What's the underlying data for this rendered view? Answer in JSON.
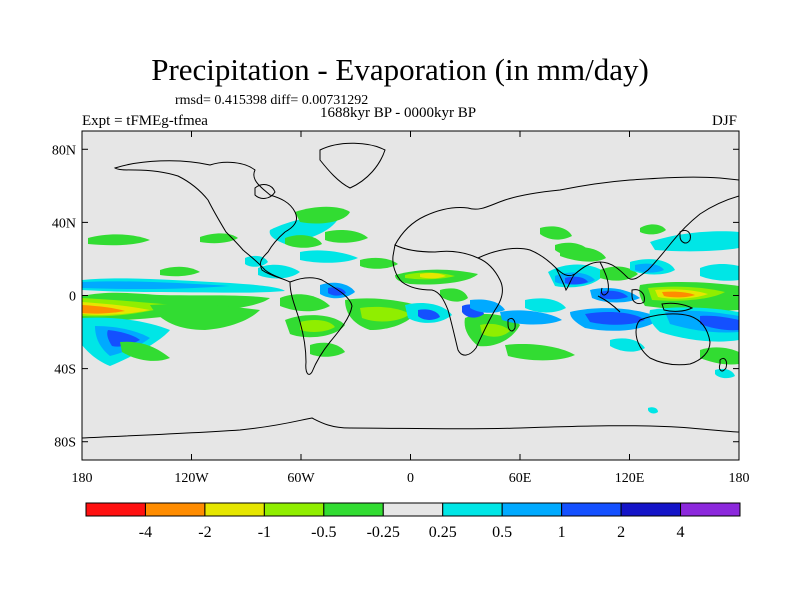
{
  "title": "Precipitation - Evaporation (in mm/day)",
  "stats": "rmsd= 0.415398 diff= 0.00731292",
  "period": "1688kyr BP - 0000kyr BP",
  "experiment": "Expt = tFMEg-tfmea",
  "season": "DJF",
  "map": {
    "lon_range": [
      -180,
      180
    ],
    "lat_range": [
      -90,
      90
    ],
    "lat_ticks": [
      {
        "value": 80,
        "label": "80N"
      },
      {
        "value": 40,
        "label": "40N"
      },
      {
        "value": 0,
        "label": "0"
      },
      {
        "value": -40,
        "label": "40S"
      },
      {
        "value": -80,
        "label": "80S"
      }
    ],
    "lon_ticks": [
      {
        "value": -180,
        "label": "180"
      },
      {
        "value": -120,
        "label": "120W"
      },
      {
        "value": -60,
        "label": "60W"
      },
      {
        "value": 0,
        "label": "0"
      },
      {
        "value": 60,
        "label": "60E"
      },
      {
        "value": 120,
        "label": "120E"
      },
      {
        "value": 180,
        "label": "180"
      }
    ]
  },
  "colorbar": {
    "colors": [
      "#ff1010",
      "#ff8c00",
      "#e6e600",
      "#90ee00",
      "#32dc32",
      "#e6e6e6",
      "#00e6e6",
      "#00aaff",
      "#1450ff",
      "#1414c8",
      "#8c28dc"
    ],
    "labels": [
      "-4",
      "-2",
      "-1",
      "-0.5",
      "-0.25",
      "0.25",
      "0.5",
      "1",
      "2",
      "4"
    ]
  },
  "chart_data": {
    "type": "heatmap",
    "title": "Precipitation - Evaporation (in mm/day)",
    "subtitle": "1688kyr BP - 0000kyr BP",
    "variable": "P-E difference",
    "units": "mm/day",
    "levels": [
      -4,
      -2,
      -1,
      -0.5,
      -0.25,
      0.25,
      0.5,
      1,
      2,
      4
    ],
    "regions": [
      {
        "lon": [
          -180,
          -120
        ],
        "lat": [
          -10,
          3
        ],
        "value": -0.7
      },
      {
        "lon": [
          -180,
          -150
        ],
        "lat": [
          -8,
          -1
        ],
        "value": -2.2
      },
      {
        "lon": [
          -180,
          -110
        ],
        "lat": [
          4,
          12
        ],
        "value": 1.0
      },
      {
        "lon": [
          -180,
          -140
        ],
        "lat": [
          -28,
          -12
        ],
        "value": 1.5
      },
      {
        "lon": [
          -160,
          -120
        ],
        "lat": [
          -30,
          -18
        ],
        "value": 0.6
      },
      {
        "lon": [
          -170,
          -140
        ],
        "lat": [
          -22,
          -16
        ],
        "value": 2.5
      },
      {
        "lon": [
          -115,
          -80
        ],
        "lat": [
          -18,
          -5
        ],
        "value": -0.4
      },
      {
        "lon": [
          -65,
          -45
        ],
        "lat": [
          32,
          44
        ],
        "value": -0.4
      },
      {
        "lon": [
          -70,
          -50
        ],
        "lat": [
          22,
          30
        ],
        "value": 0.6
      },
      {
        "lon": [
          -55,
          -20
        ],
        "lat": [
          -30,
          -10
        ],
        "value": -0.4
      },
      {
        "lon": [
          -30,
          0
        ],
        "lat": [
          -20,
          -10
        ],
        "value": 1.2
      },
      {
        "lon": [
          -20,
          40
        ],
        "lat": [
          4,
          12
        ],
        "value": -0.7
      },
      {
        "lon": [
          30,
          70
        ],
        "lat": [
          -40,
          -25
        ],
        "value": -0.4
      },
      {
        "lon": [
          50,
          100
        ],
        "lat": [
          -20,
          -10
        ],
        "value": 1.2
      },
      {
        "lon": [
          80,
          100
        ],
        "lat": [
          5,
          15
        ],
        "value": 1.5
      },
      {
        "lon": [
          140,
          170
        ],
        "lat": [
          -5,
          2
        ],
        "value": -2.5
      },
      {
        "lon": [
          150,
          180
        ],
        "lat": [
          -8,
          0
        ],
        "value": -1.0
      },
      {
        "lon": [
          120,
          180
        ],
        "lat": [
          25,
          35
        ],
        "value": 0.4
      },
      {
        "lon": [
          100,
          150
        ],
        "lat": [
          -25,
          -15
        ],
        "value": 1.5
      },
      {
        "lon": [
          150,
          180
        ],
        "lat": [
          -30,
          -20
        ],
        "value": 0.5
      }
    ]
  }
}
